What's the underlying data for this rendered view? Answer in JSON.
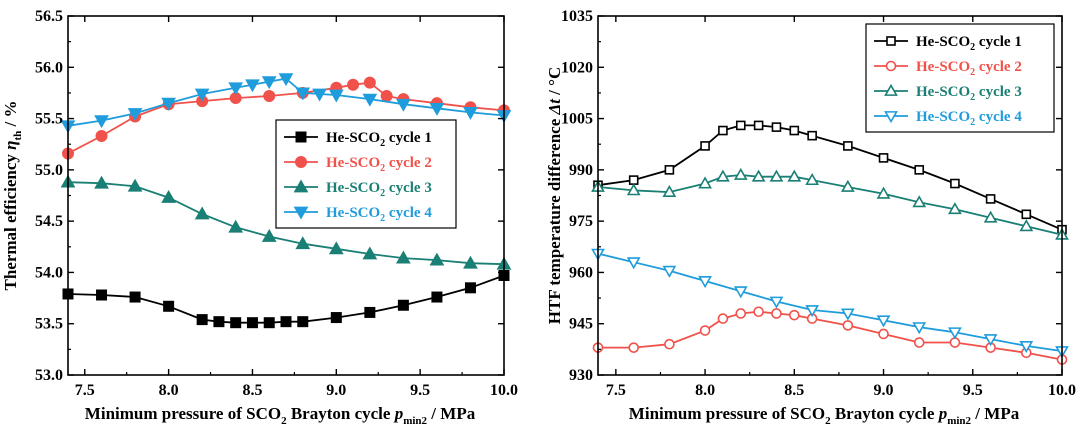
{
  "chart_data": [
    {
      "id": "left",
      "type": "line",
      "title": "",
      "xlabel": {
        "main": "Minimum pressure of SCO",
        "sub1": "2",
        "mid": " Brayton cycle ",
        "var": "p",
        "varsub": "min2",
        "unit": " / MPa"
      },
      "ylabel": {
        "main": "Thermal efficiency ",
        "var": "η",
        "varsub": "th",
        "unit": " / %"
      },
      "xlim": [
        7.4,
        10.0
      ],
      "ylim": [
        53.0,
        56.5
      ],
      "xticks": [
        7.5,
        8.0,
        8.5,
        9.0,
        9.5,
        10.0
      ],
      "xtick_labels": [
        "7.5",
        "8.0",
        "8.5",
        "9.0",
        "9.5",
        "10.0"
      ],
      "yticks": [
        53.0,
        53.5,
        54.0,
        54.5,
        55.0,
        55.5,
        56.0,
        56.5
      ],
      "ytick_labels": [
        "53.0",
        "53.5",
        "54.0",
        "54.5",
        "55.0",
        "55.5",
        "56.0",
        "56.5"
      ],
      "legend_position": "center-right",
      "series": [
        {
          "name_main": "He-SCO",
          "name_sub": "2",
          "name_tail": " cycle 1",
          "color": "#000000",
          "marker": "square-filled",
          "x": [
            7.4,
            7.6,
            7.8,
            8.0,
            8.2,
            8.3,
            8.4,
            8.5,
            8.6,
            8.7,
            8.8,
            9.0,
            9.2,
            9.4,
            9.6,
            9.8,
            10.0
          ],
          "y": [
            53.79,
            53.78,
            53.76,
            53.67,
            53.54,
            53.52,
            53.51,
            53.51,
            53.51,
            53.52,
            53.52,
            53.56,
            53.61,
            53.68,
            53.76,
            53.85,
            53.97
          ]
        },
        {
          "name_main": "He-SCO",
          "name_sub": "2",
          "name_tail": " cycle 2",
          "color": "#f0524b",
          "marker": "circle-filled",
          "x": [
            7.4,
            7.6,
            7.8,
            8.0,
            8.2,
            8.4,
            8.6,
            8.8,
            9.0,
            9.1,
            9.2,
            9.3,
            9.4,
            9.6,
            9.8,
            10.0
          ],
          "y": [
            55.16,
            55.33,
            55.52,
            55.64,
            55.67,
            55.7,
            55.72,
            55.75,
            55.8,
            55.83,
            55.85,
            55.72,
            55.69,
            55.65,
            55.61,
            55.58
          ]
        },
        {
          "name_main": "He-SCO",
          "name_sub": "2",
          "name_tail": " cycle 3",
          "color": "#1a7f74",
          "marker": "triangle-up-filled",
          "x": [
            7.4,
            7.6,
            7.8,
            8.0,
            8.2,
            8.4,
            8.6,
            8.8,
            9.0,
            9.2,
            9.4,
            9.6,
            9.8,
            10.0
          ],
          "y": [
            54.88,
            54.87,
            54.84,
            54.73,
            54.57,
            54.44,
            54.35,
            54.28,
            54.23,
            54.18,
            54.14,
            54.12,
            54.09,
            54.08
          ]
        },
        {
          "name_main": "He-SCO",
          "name_sub": "2",
          "name_tail": " cycle 4",
          "color": "#1f9cdb",
          "marker": "triangle-down-filled",
          "x": [
            7.4,
            7.6,
            7.8,
            8.0,
            8.2,
            8.4,
            8.5,
            8.6,
            8.7,
            8.8,
            8.9,
            9.0,
            9.2,
            9.4,
            9.6,
            9.8,
            10.0
          ],
          "y": [
            55.43,
            55.48,
            55.55,
            55.65,
            55.74,
            55.8,
            55.83,
            55.86,
            55.89,
            55.75,
            55.74,
            55.73,
            55.69,
            55.64,
            55.6,
            55.56,
            55.53
          ]
        }
      ]
    },
    {
      "id": "right",
      "type": "line",
      "title": "",
      "xlabel": {
        "main": "Minimum pressure of SCO",
        "sub1": "2",
        "mid": " Brayton cycle ",
        "var": "p",
        "varsub": "min2",
        "unit": " / MPa"
      },
      "ylabel": {
        "main": "HTF temperature difference ",
        "var": "Δt",
        "varsub": "",
        "unit": " / °C"
      },
      "xlim": [
        7.4,
        10.0
      ],
      "ylim": [
        930,
        1035
      ],
      "xticks": [
        7.5,
        8.0,
        8.5,
        9.0,
        9.5,
        10.0
      ],
      "xtick_labels": [
        "7.5",
        "8.0",
        "8.5",
        "9.0",
        "9.5",
        "10.0"
      ],
      "yticks": [
        930,
        945,
        960,
        975,
        990,
        1005,
        1020,
        1035
      ],
      "ytick_labels": [
        "930",
        "945",
        "960",
        "975",
        "990",
        "1005",
        "1020",
        "1035"
      ],
      "legend_position": "top-right",
      "series": [
        {
          "name_main": "He-SCO",
          "name_sub": "2",
          "name_tail": " cycle 1",
          "color": "#000000",
          "marker": "square-open",
          "x": [
            7.4,
            7.6,
            7.8,
            8.0,
            8.1,
            8.2,
            8.3,
            8.4,
            8.5,
            8.6,
            8.8,
            9.0,
            9.2,
            9.4,
            9.6,
            9.8,
            10.0
          ],
          "y": [
            985.5,
            987,
            990,
            997,
            1001.5,
            1003,
            1003,
            1002.5,
            1001.5,
            1000,
            997,
            993.5,
            990,
            986,
            981.5,
            977,
            972.5
          ]
        },
        {
          "name_main": "He-SCO",
          "name_sub": "2",
          "name_tail": " cycle 2",
          "color": "#f0524b",
          "marker": "circle-open",
          "x": [
            7.4,
            7.6,
            7.8,
            8.0,
            8.1,
            8.2,
            8.3,
            8.4,
            8.5,
            8.6,
            8.8,
            9.0,
            9.2,
            9.4,
            9.6,
            9.8,
            10.0
          ],
          "y": [
            938,
            938,
            939,
            943,
            946.5,
            948,
            948.5,
            948,
            947.5,
            946.5,
            944.5,
            942,
            939.5,
            939.5,
            938,
            936.5,
            934.5
          ]
        },
        {
          "name_main": "He-SCO",
          "name_sub": "2",
          "name_tail": " cycle 3",
          "color": "#1a7f74",
          "marker": "triangle-up-open",
          "x": [
            7.4,
            7.6,
            7.8,
            8.0,
            8.1,
            8.2,
            8.3,
            8.4,
            8.5,
            8.6,
            8.8,
            9.0,
            9.2,
            9.4,
            9.6,
            9.8,
            10.0
          ],
          "y": [
            985,
            984,
            983.5,
            986,
            988,
            988.5,
            988,
            988,
            988,
            987,
            985,
            983,
            980.5,
            978.5,
            976,
            973.5,
            971
          ]
        },
        {
          "name_main": "He-SCO",
          "name_sub": "2",
          "name_tail": " cycle 4",
          "color": "#1f9cdb",
          "marker": "triangle-down-open",
          "x": [
            7.4,
            7.6,
            7.8,
            8.0,
            8.2,
            8.4,
            8.6,
            8.8,
            9.0,
            9.2,
            9.4,
            9.6,
            9.8,
            10.0
          ],
          "y": [
            965.5,
            963,
            960.5,
            957.5,
            954.5,
            951.5,
            949,
            948,
            946,
            944,
            942.5,
            940.5,
            938.5,
            937
          ]
        }
      ]
    }
  ]
}
